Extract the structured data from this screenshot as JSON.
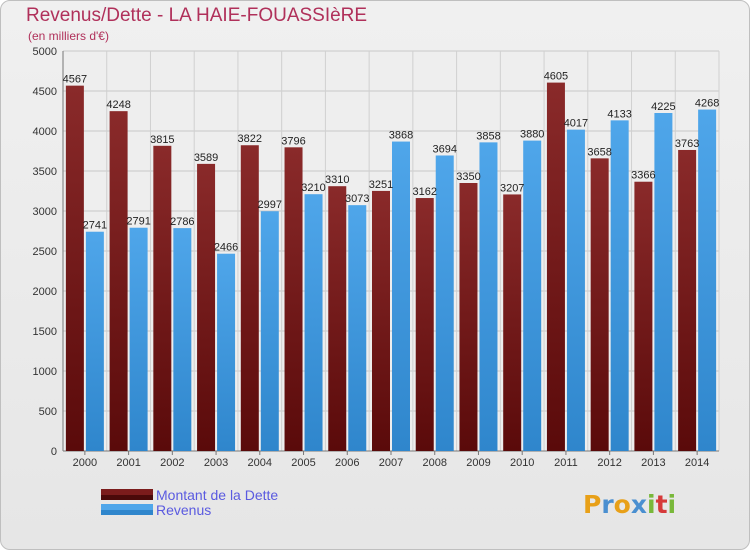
{
  "title": "Revenus/Dette - LA HAIE-FOUASSIèRE",
  "subtitle": "(en milliers d'€)",
  "logo": {
    "text": "Proxiti",
    "letters": [
      {
        "ch": "P",
        "color": "#e8a018"
      },
      {
        "ch": "r",
        "color": "#4a8fd0"
      },
      {
        "ch": "o",
        "color": "#e8a018"
      },
      {
        "ch": "x",
        "color": "#4a8fd0"
      },
      {
        "ch": "i",
        "color": "#79b83a"
      },
      {
        "ch": "t",
        "color": "#d63a3a"
      },
      {
        "ch": "i",
        "color": "#79b83a"
      }
    ]
  },
  "chart_data": {
    "type": "bar",
    "title": "Revenus/Dette - LA HAIE-FOUASSIèRE",
    "subtitle": "(en milliers d'€)",
    "categories": [
      "2000",
      "2001",
      "2002",
      "2003",
      "2004",
      "2005",
      "2006",
      "2007",
      "2008",
      "2009",
      "2010",
      "2011",
      "2012",
      "2013",
      "2014"
    ],
    "series": [
      {
        "name": "Montant de la Dette",
        "color": "#7b1c1c",
        "values": [
          4567,
          4248,
          3815,
          3589,
          3822,
          3796,
          3310,
          3251,
          3162,
          3350,
          3207,
          4605,
          3658,
          3366,
          3763
        ],
        "labels": [
          "4567",
          "4248",
          "3815",
          "3589",
          "3822",
          "3796",
          "3310",
          "3251",
          "3162",
          "3350",
          "3207",
          "4605",
          "3658",
          "3366",
          "3763"
        ]
      },
      {
        "name": "Revenus",
        "color": "#3f9be2",
        "values": [
          2741,
          2791,
          2786,
          2466,
          2997,
          3210,
          3073,
          3868,
          3694,
          3858,
          3880,
          4017,
          4133,
          4225,
          4268
        ],
        "labels": [
          "2741",
          "2791",
          "2786",
          "2466",
          "2997",
          "3210",
          "3073",
          "3868",
          "3694",
          "3858",
          "3880",
          "4017",
          "4133",
          "4225",
          "4268"
        ]
      }
    ],
    "ylim": [
      0,
      5000
    ],
    "yticks": [
      0,
      500,
      1000,
      1500,
      2000,
      2500,
      3000,
      3500,
      4000,
      4500,
      5000
    ],
    "grid": true,
    "legend": "bottom-left"
  }
}
